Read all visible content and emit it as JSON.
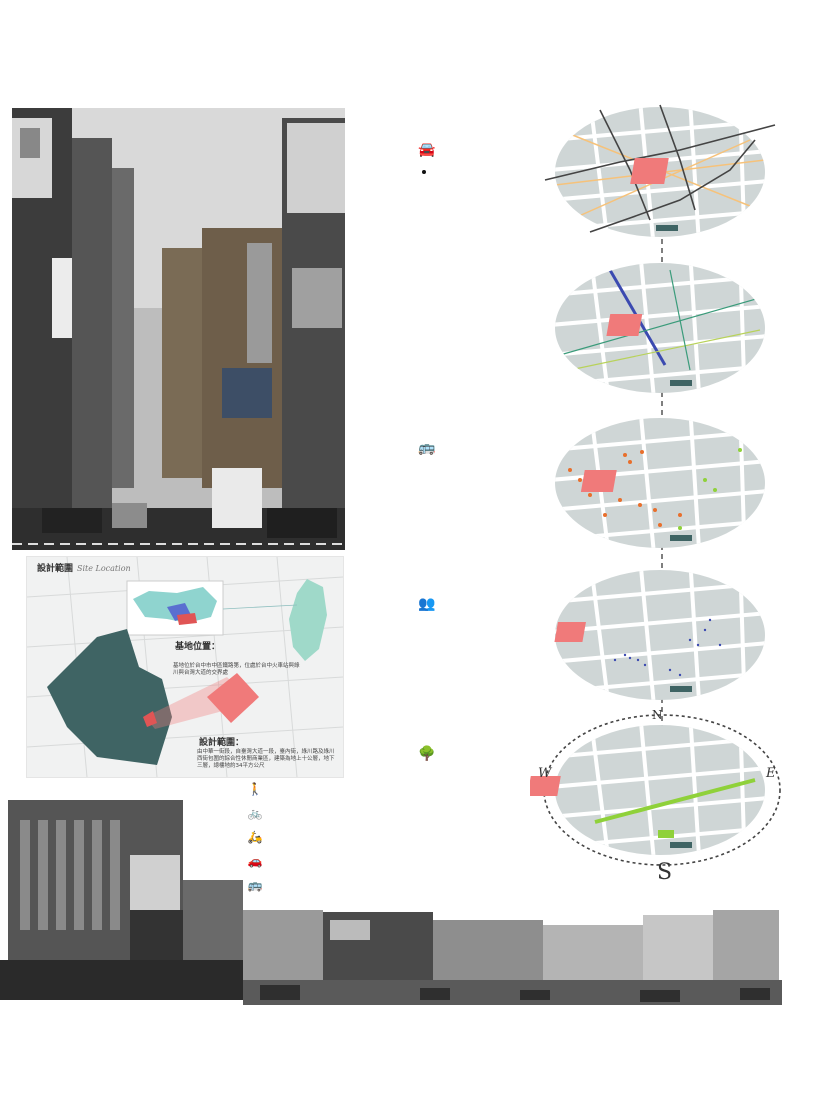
{
  "site_location": {
    "title": "設計範圍",
    "subtitle": "Site Location",
    "base_heading": "基地位置：",
    "base_text": "基地位於台中市中區鐵路第，位處於台中火車站與綠川與台灣大道的交界處",
    "scope_heading": "設計範圍：",
    "scope_text": "由中華一街段，自臺灣大道一段，臺內街，綠川路及綠川西街包圍的綜合性休閒商業區，建築為地上十公層，地下三層，總樓地約34平方公尺"
  },
  "compass": {
    "north": "N",
    "south": "S",
    "east": "E",
    "west": "W"
  },
  "transport_modes": [
    {
      "icon": "walk-icon",
      "glyph": "🚶"
    },
    {
      "icon": "bicycle-icon",
      "glyph": "🚲"
    },
    {
      "icon": "scooter-icon",
      "glyph": "🛵"
    },
    {
      "icon": "car-icon",
      "glyph": "🚗"
    },
    {
      "icon": "bus-icon",
      "glyph": "🚌"
    }
  ],
  "layer_icons": [
    {
      "icon": "car-icon",
      "glyph": "🚘"
    },
    {
      "icon": "bus-icon",
      "glyph": "🚌"
    },
    {
      "icon": "people-icon",
      "glyph": "👥"
    },
    {
      "icon": "bench-tree-icon",
      "glyph": "🌳"
    }
  ],
  "colors": {
    "site_red": "#f07a7a",
    "map_base": "#cfd6d6",
    "road_orange": "#f6c27a",
    "road_dark": "#444444",
    "line_blue": "#3b4ab0",
    "line_green": "#3a9b7a",
    "green_axis": "#8fd13a",
    "bus_dot": "#e86f2c",
    "teal_block": "#3f6464"
  }
}
